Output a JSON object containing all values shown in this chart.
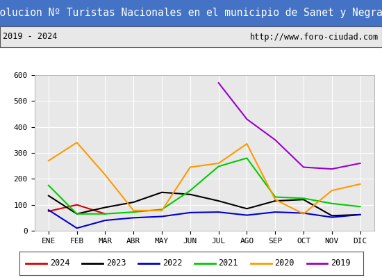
{
  "title": "Evolucion Nº Turistas Nacionales en el municipio de Sanet y Negrals",
  "subtitle_left": "2019 - 2024",
  "subtitle_right": "http://www.foro-ciudad.com",
  "months": [
    "ENE",
    "FEB",
    "MAR",
    "ABR",
    "MAY",
    "JUN",
    "JUL",
    "AGO",
    "SEP",
    "OCT",
    "NOV",
    "DIC"
  ],
  "ylim": [
    0,
    600
  ],
  "yticks": [
    0,
    100,
    200,
    300,
    400,
    500,
    600
  ],
  "series": {
    "2024": {
      "color": "#dd0000",
      "values": [
        75,
        100,
        65,
        null,
        null,
        null,
        null,
        null,
        null,
        null,
        null,
        null
      ]
    },
    "2023": {
      "color": "#000000",
      "values": [
        135,
        65,
        90,
        110,
        148,
        140,
        115,
        85,
        115,
        120,
        58,
        62
      ]
    },
    "2022": {
      "color": "#0000cc",
      "values": [
        80,
        10,
        40,
        50,
        55,
        70,
        72,
        60,
        72,
        68,
        52,
        62
      ]
    },
    "2021": {
      "color": "#00cc00",
      "values": [
        175,
        65,
        65,
        72,
        82,
        155,
        248,
        280,
        130,
        125,
        105,
        93
      ]
    },
    "2020": {
      "color": "#ff9900",
      "values": [
        270,
        340,
        215,
        78,
        78,
        245,
        260,
        335,
        120,
        65,
        155,
        180
      ]
    },
    "2019": {
      "color": "#9900cc",
      "values": [
        null,
        null,
        null,
        null,
        null,
        null,
        570,
        430,
        350,
        245,
        238,
        260
      ]
    }
  },
  "title_bg_color": "#4472c4",
  "title_text_color": "#ffffff",
  "subtitle_bg_color": "#e8e8e8",
  "subtitle_text_color": "#000000",
  "plot_bg_color": "#e8e8e8",
  "grid_color": "#ffffff",
  "title_fontsize": 10.5,
  "subtitle_fontsize": 8.5,
  "tick_fontsize": 8,
  "legend_order": [
    "2024",
    "2023",
    "2022",
    "2021",
    "2020",
    "2019"
  ]
}
